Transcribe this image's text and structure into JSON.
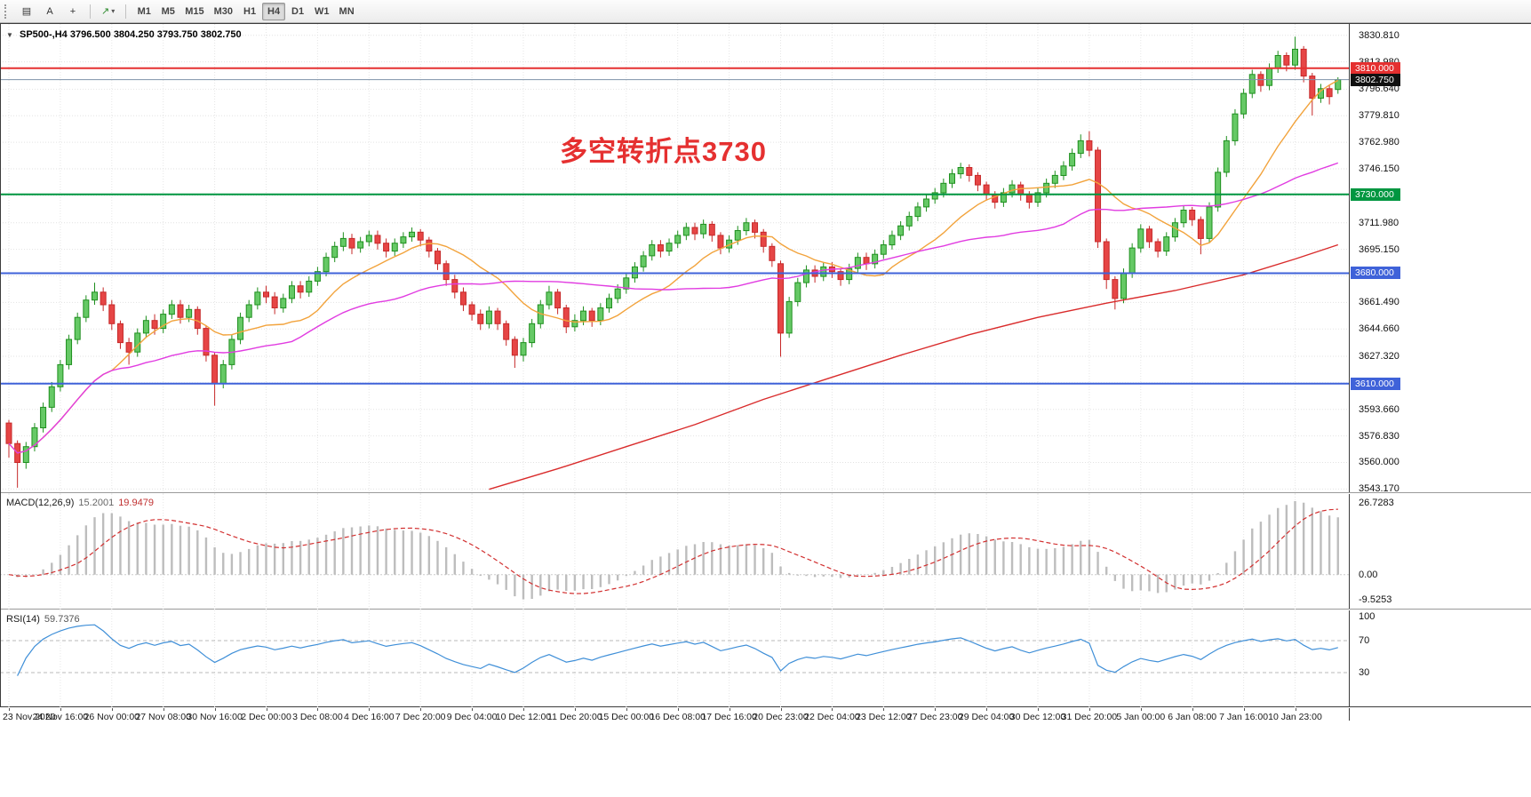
{
  "toolbar": {
    "icon_buttons": [
      {
        "name": "chart-window",
        "glyph": "▤"
      },
      {
        "name": "cursor",
        "glyph": "A"
      },
      {
        "name": "crosshair",
        "glyph": "+"
      },
      {
        "name": "line-studies",
        "glyph": "↗"
      }
    ],
    "caret_glyph": "▾",
    "timeframes": [
      "M1",
      "M5",
      "M15",
      "M30",
      "H1",
      "H4",
      "D1",
      "W1",
      "MN"
    ],
    "active_timeframe": "H4"
  },
  "chart": {
    "symbol_period": "SP500-,H4",
    "ohlc": {
      "open": "3796.500",
      "high": "3804.250",
      "low": "3793.750",
      "close": "3802.750"
    },
    "collapse_caret": "▼",
    "annotation": {
      "text": "多空转折点3730",
      "color": "#e53030"
    }
  },
  "chart_data": {
    "type": "candlestick",
    "symbol": "SP500-",
    "timeframe": "H4",
    "price_range": [
      3540,
      3838
    ],
    "candle_colors": {
      "up_border": "#1e8f1e",
      "up_fill": "#66c966",
      "down_border": "#c62828",
      "down_fill": "#e64545"
    },
    "candles": [
      [
        3585,
        3587,
        3563,
        3572
      ],
      [
        3572,
        3574,
        3544,
        3560
      ],
      [
        3560,
        3573,
        3556,
        3570
      ],
      [
        3570,
        3585,
        3567,
        3582
      ],
      [
        3582,
        3598,
        3579,
        3595
      ],
      [
        3595,
        3611,
        3592,
        3608
      ],
      [
        3608,
        3625,
        3605,
        3622
      ],
      [
        3622,
        3641,
        3619,
        3638
      ],
      [
        3638,
        3655,
        3635,
        3652
      ],
      [
        3652,
        3666,
        3649,
        3663
      ],
      [
        3663,
        3674,
        3660,
        3668
      ],
      [
        3668,
        3671,
        3656,
        3660
      ],
      [
        3660,
        3663,
        3644,
        3648
      ],
      [
        3648,
        3650,
        3632,
        3636
      ],
      [
        3636,
        3639,
        3622,
        3630
      ],
      [
        3630,
        3645,
        3627,
        3642
      ],
      [
        3642,
        3653,
        3639,
        3650
      ],
      [
        3650,
        3654,
        3641,
        3645
      ],
      [
        3645,
        3657,
        3642,
        3654
      ],
      [
        3654,
        3663,
        3651,
        3660
      ],
      [
        3660,
        3663,
        3648,
        3652
      ],
      [
        3652,
        3660,
        3649,
        3657
      ],
      [
        3657,
        3659,
        3641,
        3645
      ],
      [
        3645,
        3647,
        3624,
        3628
      ],
      [
        3628,
        3630,
        3596,
        3610
      ],
      [
        3610,
        3625,
        3607,
        3622
      ],
      [
        3622,
        3641,
        3619,
        3638
      ],
      [
        3638,
        3655,
        3635,
        3652
      ],
      [
        3652,
        3663,
        3649,
        3660
      ],
      [
        3660,
        3671,
        3657,
        3668
      ],
      [
        3668,
        3672,
        3661,
        3665
      ],
      [
        3665,
        3668,
        3654,
        3658
      ],
      [
        3658,
        3667,
        3655,
        3664
      ],
      [
        3664,
        3675,
        3661,
        3672
      ],
      [
        3672,
        3675,
        3664,
        3668
      ],
      [
        3668,
        3678,
        3665,
        3675
      ],
      [
        3675,
        3684,
        3672,
        3681
      ],
      [
        3681,
        3693,
        3678,
        3690
      ],
      [
        3690,
        3700,
        3687,
        3697
      ],
      [
        3697,
        3706,
        3694,
        3702
      ],
      [
        3702,
        3705,
        3692,
        3696
      ],
      [
        3696,
        3703,
        3693,
        3700
      ],
      [
        3700,
        3707,
        3697,
        3704
      ],
      [
        3704,
        3707,
        3695,
        3699
      ],
      [
        3699,
        3702,
        3690,
        3694
      ],
      [
        3694,
        3702,
        3691,
        3699
      ],
      [
        3699,
        3706,
        3696,
        3703
      ],
      [
        3703,
        3709,
        3700,
        3706
      ],
      [
        3706,
        3708,
        3697,
        3701
      ],
      [
        3701,
        3703,
        3690,
        3694
      ],
      [
        3694,
        3696,
        3682,
        3686
      ],
      [
        3686,
        3688,
        3672,
        3676
      ],
      [
        3676,
        3679,
        3664,
        3668
      ],
      [
        3668,
        3671,
        3656,
        3660
      ],
      [
        3660,
        3662,
        3650,
        3654
      ],
      [
        3654,
        3657,
        3644,
        3648
      ],
      [
        3648,
        3659,
        3645,
        3656
      ],
      [
        3656,
        3658,
        3644,
        3648
      ],
      [
        3648,
        3650,
        3634,
        3638
      ],
      [
        3638,
        3640,
        3620,
        3628
      ],
      [
        3628,
        3639,
        3624,
        3636
      ],
      [
        3636,
        3651,
        3633,
        3648
      ],
      [
        3648,
        3663,
        3645,
        3660
      ],
      [
        3660,
        3672,
        3657,
        3668
      ],
      [
        3668,
        3670,
        3654,
        3658
      ],
      [
        3658,
        3660,
        3642,
        3646
      ],
      [
        3646,
        3654,
        3643,
        3650
      ],
      [
        3650,
        3659,
        3647,
        3656
      ],
      [
        3656,
        3658,
        3646,
        3650
      ],
      [
        3650,
        3661,
        3647,
        3658
      ],
      [
        3658,
        3667,
        3655,
        3664
      ],
      [
        3664,
        3673,
        3661,
        3670
      ],
      [
        3670,
        3680,
        3667,
        3677
      ],
      [
        3677,
        3687,
        3674,
        3684
      ],
      [
        3684,
        3694,
        3681,
        3691
      ],
      [
        3691,
        3701,
        3688,
        3698
      ],
      [
        3698,
        3701,
        3690,
        3694
      ],
      [
        3694,
        3702,
        3691,
        3699
      ],
      [
        3699,
        3707,
        3696,
        3704
      ],
      [
        3704,
        3712,
        3701,
        3709
      ],
      [
        3709,
        3712,
        3701,
        3705
      ],
      [
        3705,
        3714,
        3702,
        3711
      ],
      [
        3711,
        3713,
        3700,
        3704
      ],
      [
        3704,
        3706,
        3692,
        3696
      ],
      [
        3696,
        3704,
        3693,
        3701
      ],
      [
        3701,
        3710,
        3698,
        3707
      ],
      [
        3707,
        3715,
        3704,
        3712
      ],
      [
        3712,
        3714,
        3702,
        3706
      ],
      [
        3706,
        3708,
        3693,
        3697
      ],
      [
        3697,
        3699,
        3684,
        3688
      ],
      [
        3686,
        3688,
        3627,
        3642
      ],
      [
        3642,
        3665,
        3639,
        3662
      ],
      [
        3662,
        3677,
        3659,
        3674
      ],
      [
        3674,
        3685,
        3671,
        3682
      ],
      [
        3682,
        3685,
        3674,
        3678
      ],
      [
        3678,
        3687,
        3675,
        3684
      ],
      [
        3684,
        3687,
        3677,
        3681
      ],
      [
        3681,
        3683,
        3672,
        3676
      ],
      [
        3676,
        3686,
        3673,
        3683
      ],
      [
        3683,
        3693,
        3680,
        3690
      ],
      [
        3690,
        3693,
        3682,
        3686
      ],
      [
        3686,
        3695,
        3683,
        3692
      ],
      [
        3692,
        3701,
        3689,
        3698
      ],
      [
        3698,
        3707,
        3695,
        3704
      ],
      [
        3704,
        3713,
        3701,
        3710
      ],
      [
        3710,
        3719,
        3707,
        3716
      ],
      [
        3716,
        3725,
        3713,
        3722
      ],
      [
        3722,
        3730,
        3719,
        3727
      ],
      [
        3727,
        3734,
        3724,
        3731
      ],
      [
        3731,
        3740,
        3728,
        3737
      ],
      [
        3737,
        3746,
        3734,
        3743
      ],
      [
        3743,
        3750,
        3740,
        3747
      ],
      [
        3747,
        3749,
        3738,
        3742
      ],
      [
        3742,
        3744,
        3732,
        3736
      ],
      [
        3736,
        3738,
        3726,
        3730
      ],
      [
        3730,
        3732,
        3721,
        3725
      ],
      [
        3725,
        3734,
        3722,
        3731
      ],
      [
        3731,
        3739,
        3728,
        3736
      ],
      [
        3736,
        3738,
        3726,
        3730
      ],
      [
        3730,
        3732,
        3721,
        3725
      ],
      [
        3725,
        3734,
        3722,
        3731
      ],
      [
        3731,
        3740,
        3728,
        3737
      ],
      [
        3737,
        3745,
        3734,
        3742
      ],
      [
        3742,
        3751,
        3739,
        3748
      ],
      [
        3748,
        3759,
        3745,
        3756
      ],
      [
        3756,
        3768,
        3753,
        3764
      ],
      [
        3764,
        3770,
        3754,
        3758
      ],
      [
        3758,
        3760,
        3696,
        3700
      ],
      [
        3700,
        3702,
        3670,
        3676
      ],
      [
        3676,
        3678,
        3657,
        3664
      ],
      [
        3664,
        3683,
        3661,
        3680
      ],
      [
        3680,
        3699,
        3677,
        3696
      ],
      [
        3696,
        3711,
        3693,
        3708
      ],
      [
        3708,
        3710,
        3696,
        3700
      ],
      [
        3700,
        3702,
        3690,
        3694
      ],
      [
        3694,
        3706,
        3691,
        3703
      ],
      [
        3703,
        3715,
        3700,
        3712
      ],
      [
        3712,
        3723,
        3709,
        3720
      ],
      [
        3720,
        3722,
        3710,
        3714
      ],
      [
        3714,
        3716,
        3692,
        3702
      ],
      [
        3702,
        3725,
        3699,
        3722
      ],
      [
        3722,
        3747,
        3719,
        3744
      ],
      [
        3744,
        3767,
        3741,
        3764
      ],
      [
        3764,
        3784,
        3761,
        3781
      ],
      [
        3781,
        3797,
        3778,
        3794
      ],
      [
        3794,
        3809,
        3791,
        3806
      ],
      [
        3806,
        3808,
        3795,
        3799
      ],
      [
        3799,
        3813,
        3796,
        3810
      ],
      [
        3810,
        3821,
        3807,
        3818
      ],
      [
        3818,
        3820,
        3808,
        3812
      ],
      [
        3812,
        3830,
        3809,
        3822
      ],
      [
        3822,
        3824,
        3801,
        3805
      ],
      [
        3805,
        3807,
        3780,
        3791
      ],
      [
        3791,
        3800,
        3788,
        3797
      ],
      [
        3797,
        3799,
        3787,
        3792
      ],
      [
        3796.5,
        3804.25,
        3793.75,
        3802.75
      ]
    ],
    "price_axis": [
      {
        "v": 3830.81,
        "t": "3830.810"
      },
      {
        "v": 3813.98,
        "t": "3813.980"
      },
      {
        "v": 3796.64,
        "t": "3796.640"
      },
      {
        "v": 3779.81,
        "t": "3779.810"
      },
      {
        "v": 3762.98,
        "t": "3762.980"
      },
      {
        "v": 3746.15,
        "t": "3746.150"
      },
      {
        "v": 3729.32,
        "t": "3729.320"
      },
      {
        "v": 3711.98,
        "t": "3711.980"
      },
      {
        "v": 3695.15,
        "t": "3695.150"
      },
      {
        "v": 3678.32,
        "t": "3678.320"
      },
      {
        "v": 3661.49,
        "t": "3661.490"
      },
      {
        "v": 3644.66,
        "t": "3644.660"
      },
      {
        "v": 3627.32,
        "t": "3627.320"
      },
      {
        "v": 3610.49,
        "t": "3610.490"
      },
      {
        "v": 3593.66,
        "t": "3593.660"
      },
      {
        "v": 3576.83,
        "t": "3576.830"
      },
      {
        "v": 3560.0,
        "t": "3560.000"
      },
      {
        "v": 3543.17,
        "t": "3543.170"
      }
    ],
    "time_axis": [
      "23 Nov 2020",
      "24 Nov 16:00",
      "26 Nov 00:00",
      "27 Nov 08:00",
      "30 Nov 16:00",
      "2 Dec 00:00",
      "3 Dec 08:00",
      "4 Dec 16:00",
      "7 Dec 20:00",
      "9 Dec 04:00",
      "10 Dec 12:00",
      "11 Dec 20:00",
      "15 Dec 00:00",
      "16 Dec 08:00",
      "17 Dec 16:00",
      "20 Dec 23:00",
      "22 Dec 04:00",
      "23 Dec 12:00",
      "27 Dec 23:00",
      "29 Dec 04:00",
      "30 Dec 12:00",
      "31 Dec 20:00",
      "5 Jan 00:00",
      "6 Jan 08:00",
      "7 Jan 16:00",
      "10 Jan 23:00"
    ],
    "hlines": [
      {
        "v": 3810,
        "color": "#e53030",
        "label": "3810.000",
        "width": 2
      },
      {
        "v": 3802.75,
        "color": "#7e93a8",
        "badge": "#111111",
        "label": "3802.750",
        "width": 1
      },
      {
        "v": 3730,
        "color": "#009640",
        "label": "3730.000",
        "width": 2
      },
      {
        "v": 3680,
        "color": "#3f62d9",
        "label": "3680.000",
        "width": 2
      },
      {
        "v": 3610,
        "color": "#3f62d9",
        "label": "3610.000",
        "width": 2
      }
    ],
    "moving_averages": [
      {
        "name": "ma-fast",
        "type": "sma",
        "period": 13,
        "color": "#f2a33c"
      },
      {
        "name": "ma-mid",
        "type": "sma",
        "period": 34,
        "color": "#e13ce1"
      },
      {
        "name": "ma-slow",
        "type": "points",
        "color": "#d92b2b",
        "points": [
          [
            56,
            3543
          ],
          [
            64,
            3556
          ],
          [
            72,
            3570
          ],
          [
            80,
            3584
          ],
          [
            88,
            3600
          ],
          [
            96,
            3614
          ],
          [
            104,
            3628
          ],
          [
            112,
            3641
          ],
          [
            120,
            3652
          ],
          [
            128,
            3661
          ],
          [
            136,
            3669
          ],
          [
            144,
            3679
          ],
          [
            150,
            3689
          ],
          [
            155,
            3698
          ]
        ]
      }
    ],
    "macd": {
      "label": "MACD(12,26,9)",
      "main_value": "15.2001",
      "signal_value": "19.9479",
      "fast": 12,
      "slow": 26,
      "signal": 9,
      "range": [
        -13,
        30
      ],
      "axis": [
        {
          "v": 26.7283,
          "t": "26.7283"
        },
        {
          "v": 0,
          "t": "0.00"
        },
        {
          "v": -9.5253,
          "t": "-9.5253"
        }
      ]
    },
    "rsi": {
      "label": "RSI(14)",
      "value": "59.7376",
      "period": 14,
      "levels": [
        70,
        30
      ],
      "axis": [
        {
          "v": 100,
          "t": "100"
        },
        {
          "v": 70,
          "t": "70"
        },
        {
          "v": 30,
          "t": "30"
        }
      ]
    }
  }
}
